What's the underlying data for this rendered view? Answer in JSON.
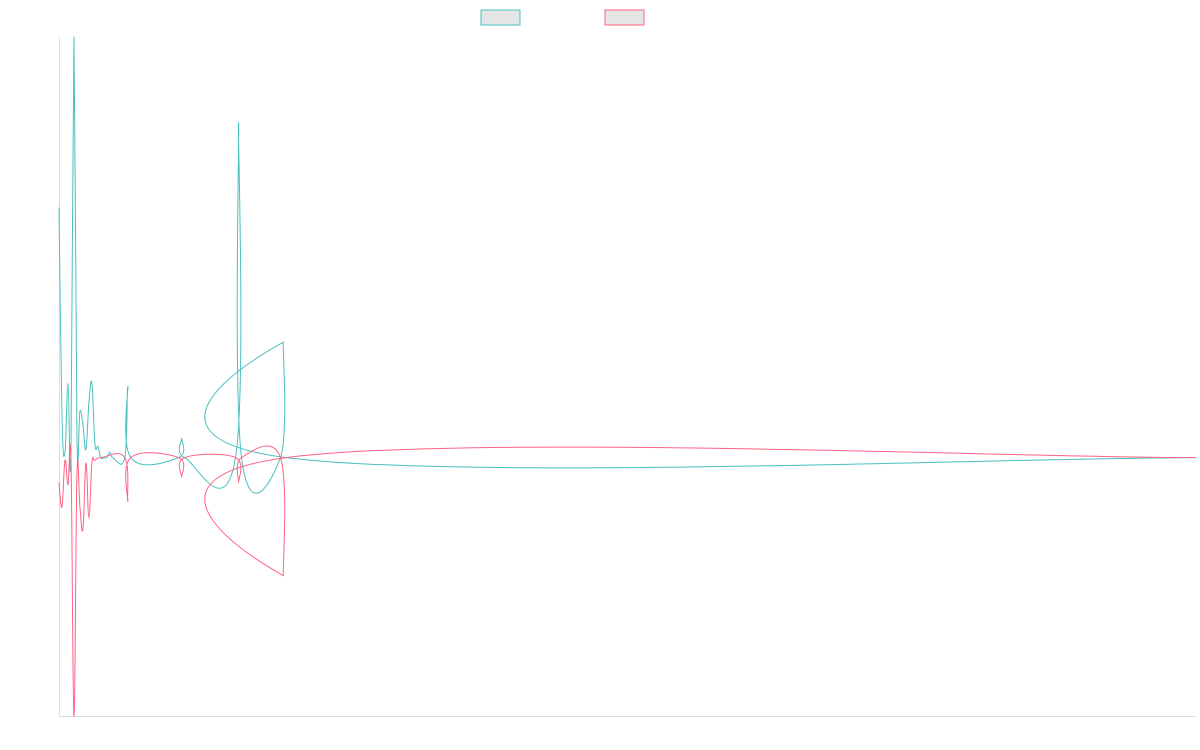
{
  "chart_data": {
    "type": "line",
    "title": "",
    "xlabel": "",
    "ylabel": "",
    "grid": false,
    "legend_placement": "top-center",
    "x_range": [
      0,
      380
    ],
    "ylim": [
      -94,
      153
    ],
    "colors": {
      "series_a": "#4bc0c0",
      "series_b": "#ff6384",
      "legend_fill": "#e5e5e5",
      "axis": "#dddddd"
    },
    "series": [
      {
        "name": "",
        "color": "#4bc0c0",
        "points": [
          [
            0,
            91
          ],
          [
            1,
            15
          ],
          [
            2,
            2
          ],
          [
            3,
            27
          ],
          [
            4,
            2
          ],
          [
            5,
            153
          ],
          [
            6,
            8
          ],
          [
            7,
            17
          ],
          [
            8,
            12
          ],
          [
            9,
            3
          ],
          [
            10,
            20
          ],
          [
            11,
            27
          ],
          [
            12,
            5
          ],
          [
            13,
            4
          ],
          [
            14,
            0
          ],
          [
            15,
            0
          ],
          [
            16,
            0
          ],
          [
            17,
            2
          ],
          [
            18,
            0
          ],
          [
            22,
            0
          ],
          [
            23,
            26
          ],
          [
            24,
            0
          ],
          [
            40,
            0
          ],
          [
            41,
            7
          ],
          [
            42,
            0
          ],
          [
            59,
            0
          ],
          [
            60,
            122
          ],
          [
            61,
            0
          ],
          [
            74,
            0
          ],
          [
            75,
            42
          ],
          [
            76,
            0
          ],
          [
            380,
            0
          ]
        ]
      },
      {
        "name": "",
        "color": "#ff6384",
        "points": [
          [
            0,
            -9
          ],
          [
            1,
            -18
          ],
          [
            2,
            -1
          ],
          [
            3,
            -10
          ],
          [
            4,
            -1
          ],
          [
            5,
            -94
          ],
          [
            6,
            -6
          ],
          [
            7,
            -18
          ],
          [
            8,
            -26
          ],
          [
            9,
            -2
          ],
          [
            10,
            -22
          ],
          [
            11,
            -2
          ],
          [
            12,
            -1
          ],
          [
            14,
            0
          ],
          [
            22,
            0
          ],
          [
            23,
            -16
          ],
          [
            24,
            0
          ],
          [
            40,
            0
          ],
          [
            41,
            -7
          ],
          [
            42,
            0
          ],
          [
            59,
            0
          ],
          [
            60,
            -9
          ],
          [
            61,
            0
          ],
          [
            74,
            0
          ],
          [
            75,
            -43
          ],
          [
            76,
            0
          ],
          [
            380,
            0
          ]
        ]
      }
    ]
  }
}
